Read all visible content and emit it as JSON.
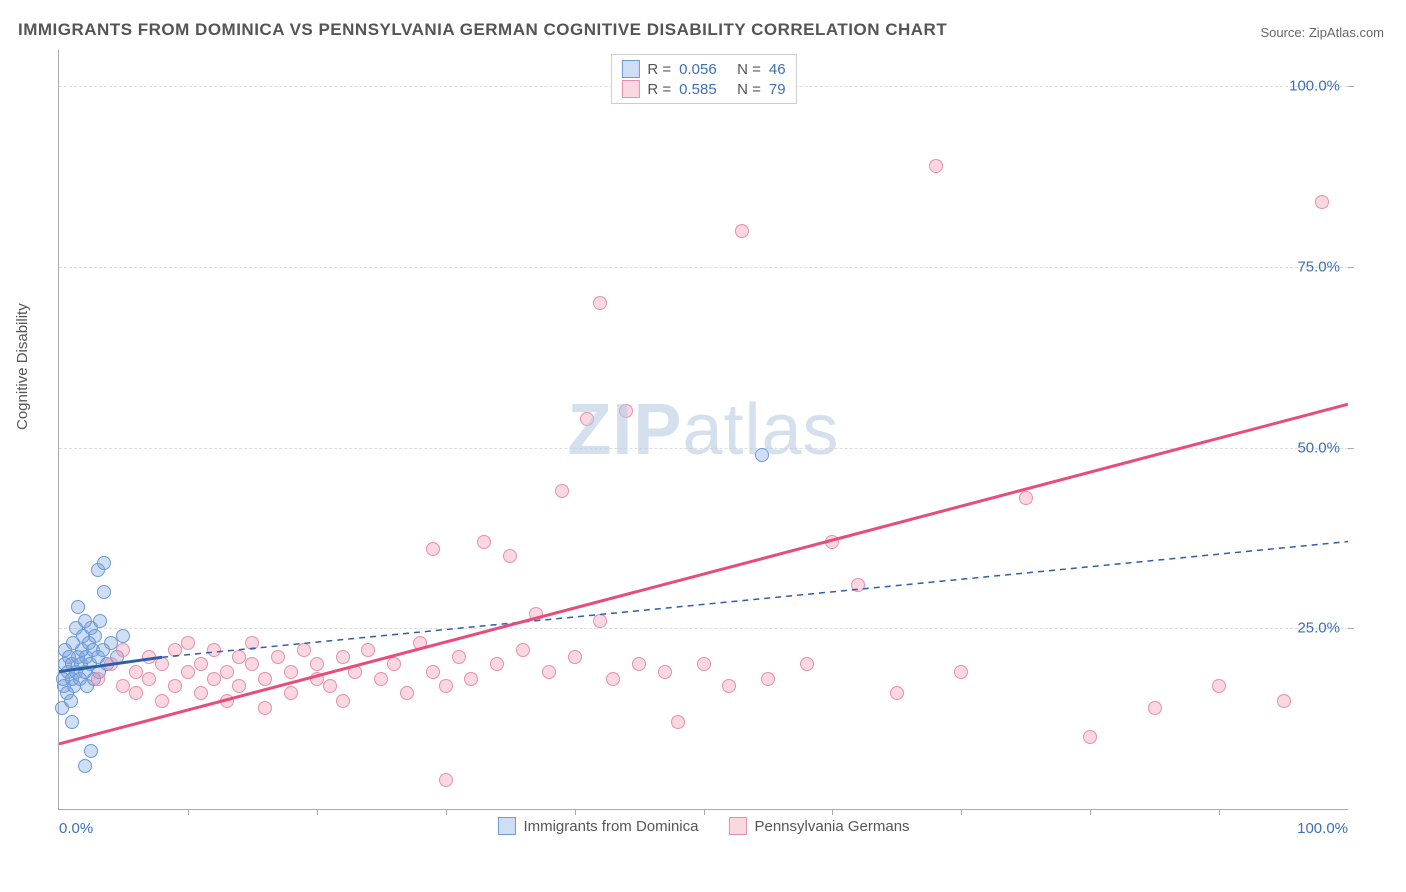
{
  "title": "IMMIGRANTS FROM DOMINICA VS PENNSYLVANIA GERMAN COGNITIVE DISABILITY CORRELATION CHART",
  "source_label": "Source: ZipAtlas.com",
  "y_axis_label": "Cognitive Disability",
  "watermark_zip": "ZIP",
  "watermark_atlas": "atlas",
  "chart": {
    "type": "scatter",
    "xlim": [
      0,
      100
    ],
    "ylim": [
      0,
      105
    ],
    "x_ticks": [
      0,
      100
    ],
    "x_tick_labels": [
      "0.0%",
      "100.0%"
    ],
    "x_minor_ticks": [
      10,
      20,
      30,
      40,
      50,
      60,
      70,
      80,
      90
    ],
    "y_ticks": [
      25,
      50,
      75,
      100
    ],
    "y_tick_labels": [
      "25.0%",
      "50.0%",
      "75.0%",
      "100.0%"
    ],
    "background_color": "#ffffff",
    "grid_color": "#dddddd",
    "axis_color": "#aaaaaa",
    "tick_label_color": "#3b6fb6",
    "marker_radius": 7,
    "series": [
      {
        "id": "dominica",
        "label": "Immigrants from Dominica",
        "fill_color": "rgba(120,160,220,0.35)",
        "stroke_color": "#6a9bd8",
        "R": "0.056",
        "N": "46",
        "trend": {
          "x1": 0,
          "y1": 19,
          "x2": 8,
          "y2": 21,
          "solid_until_x": 8,
          "dash_to_x": 100,
          "dash_to_y": 37,
          "color": "#2f5fa8",
          "width": 2,
          "dash": "6,5"
        },
        "points": [
          [
            0.2,
            14
          ],
          [
            0.3,
            18
          ],
          [
            0.5,
            20
          ],
          [
            0.5,
            22
          ],
          [
            0.6,
            16
          ],
          [
            0.7,
            19
          ],
          [
            0.8,
            21
          ],
          [
            0.9,
            15
          ],
          [
            1.0,
            18
          ],
          [
            1.0,
            20
          ],
          [
            1.1,
            23
          ],
          [
            1.2,
            17
          ],
          [
            1.3,
            19
          ],
          [
            1.3,
            25
          ],
          [
            1.5,
            21
          ],
          [
            1.5,
            28
          ],
          [
            1.6,
            18
          ],
          [
            1.7,
            20
          ],
          [
            1.8,
            22
          ],
          [
            1.9,
            24
          ],
          [
            2.0,
            19
          ],
          [
            2.0,
            26
          ],
          [
            2.1,
            21
          ],
          [
            2.2,
            17
          ],
          [
            2.3,
            23
          ],
          [
            2.4,
            20
          ],
          [
            2.5,
            25
          ],
          [
            2.6,
            22
          ],
          [
            2.7,
            18
          ],
          [
            2.8,
            24
          ],
          [
            3.0,
            21
          ],
          [
            3.0,
            33
          ],
          [
            3.1,
            19
          ],
          [
            3.2,
            26
          ],
          [
            3.4,
            22
          ],
          [
            3.5,
            34
          ],
          [
            3.7,
            20
          ],
          [
            4.0,
            23
          ],
          [
            4.5,
            21
          ],
          [
            5.0,
            24
          ],
          [
            2.0,
            6
          ],
          [
            2.5,
            8
          ],
          [
            1.0,
            12
          ],
          [
            3.5,
            30
          ],
          [
            54.5,
            49
          ],
          [
            0.4,
            17
          ]
        ]
      },
      {
        "id": "pa_german",
        "label": "Pennsylvania Germans",
        "fill_color": "rgba(240,140,170,0.35)",
        "stroke_color": "#e98fab",
        "R": "0.585",
        "N": "79",
        "trend": {
          "x1": 0,
          "y1": 9,
          "x2": 100,
          "y2": 56,
          "color": "#e94b7a",
          "width": 3
        },
        "points": [
          [
            3,
            18
          ],
          [
            4,
            20
          ],
          [
            5,
            17
          ],
          [
            5,
            22
          ],
          [
            6,
            19
          ],
          [
            6,
            16
          ],
          [
            7,
            21
          ],
          [
            7,
            18
          ],
          [
            8,
            20
          ],
          [
            8,
            15
          ],
          [
            9,
            22
          ],
          [
            9,
            17
          ],
          [
            10,
            19
          ],
          [
            10,
            23
          ],
          [
            11,
            20
          ],
          [
            11,
            16
          ],
          [
            12,
            18
          ],
          [
            12,
            22
          ],
          [
            13,
            19
          ],
          [
            13,
            15
          ],
          [
            14,
            21
          ],
          [
            14,
            17
          ],
          [
            15,
            20
          ],
          [
            15,
            23
          ],
          [
            16,
            18
          ],
          [
            16,
            14
          ],
          [
            17,
            21
          ],
          [
            18,
            19
          ],
          [
            18,
            16
          ],
          [
            19,
            22
          ],
          [
            20,
            18
          ],
          [
            20,
            20
          ],
          [
            21,
            17
          ],
          [
            22,
            21
          ],
          [
            22,
            15
          ],
          [
            23,
            19
          ],
          [
            24,
            22
          ],
          [
            25,
            18
          ],
          [
            26,
            20
          ],
          [
            27,
            16
          ],
          [
            28,
            23
          ],
          [
            29,
            19
          ],
          [
            30,
            17
          ],
          [
            30,
            4
          ],
          [
            31,
            21
          ],
          [
            32,
            18
          ],
          [
            33,
            37
          ],
          [
            34,
            20
          ],
          [
            35,
            35
          ],
          [
            36,
            22
          ],
          [
            37,
            27
          ],
          [
            38,
            19
          ],
          [
            39,
            44
          ],
          [
            40,
            21
          ],
          [
            41,
            54
          ],
          [
            42,
            26
          ],
          [
            42,
            70
          ],
          [
            43,
            18
          ],
          [
            44,
            55
          ],
          [
            45,
            20
          ],
          [
            47,
            19
          ],
          [
            48,
            12
          ],
          [
            50,
            20
          ],
          [
            52,
            17
          ],
          [
            53,
            80
          ],
          [
            55,
            18
          ],
          [
            58,
            20
          ],
          [
            60,
            37
          ],
          [
            62,
            31
          ],
          [
            65,
            16
          ],
          [
            68,
            89
          ],
          [
            70,
            19
          ],
          [
            75,
            43
          ],
          [
            80,
            10
          ],
          [
            85,
            14
          ],
          [
            90,
            17
          ],
          [
            95,
            15
          ],
          [
            98,
            84
          ],
          [
            29,
            36
          ]
        ]
      }
    ],
    "legend_top": {
      "rows": [
        {
          "swatch_series": "dominica",
          "r_label": "R =",
          "r_value": "0.056",
          "n_label": "N =",
          "n_value": "46"
        },
        {
          "swatch_series": "pa_german",
          "r_label": "R =",
          "r_value": "0.585",
          "n_label": "N =",
          "n_value": "79"
        }
      ],
      "label_color": "#555555",
      "value_color": "#3b6fb6"
    }
  }
}
